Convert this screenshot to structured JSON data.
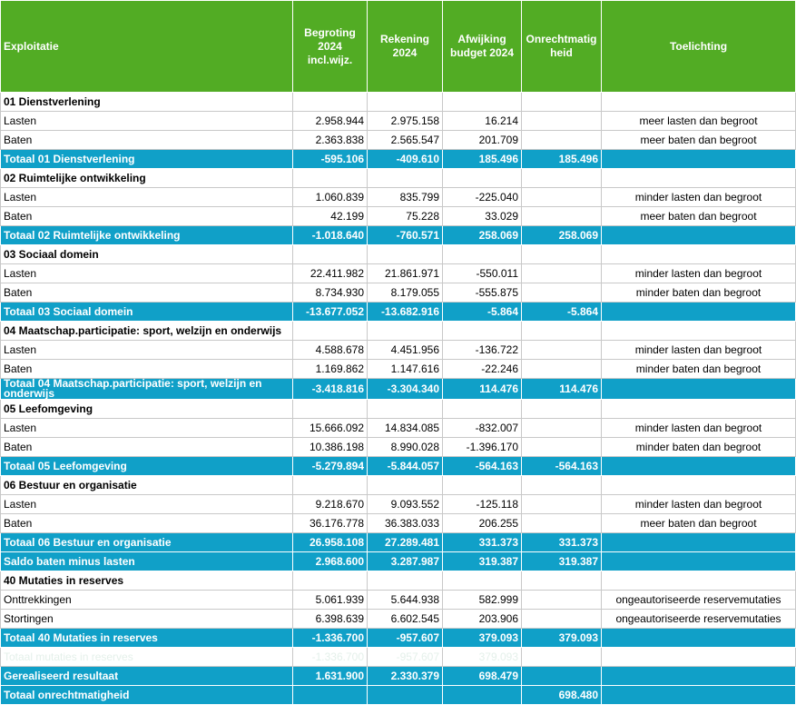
{
  "table": {
    "columns": [
      [
        "Exploitatie"
      ],
      [
        "Begroting",
        "2024",
        "incl.wijz."
      ],
      [
        "Rekening",
        "2024"
      ],
      [
        "Afwijking",
        "budget 2024"
      ],
      [
        "Onrechtmatig",
        "heid"
      ],
      [
        "Toelichting"
      ]
    ],
    "rows": [
      {
        "style": "section",
        "cells": [
          "01 Dienstverlening",
          null,
          null,
          null,
          null,
          null
        ]
      },
      {
        "style": "detail",
        "cells": [
          "Lasten",
          "2.958.944",
          "2.975.158",
          "16.214",
          null,
          "meer lasten dan begroot"
        ]
      },
      {
        "style": "detail",
        "cells": [
          "Baten",
          "2.363.838",
          "2.565.547",
          "201.709",
          null,
          "meer baten dan begroot"
        ]
      },
      {
        "style": "total",
        "cells": [
          "Totaal 01 Dienstverlening",
          "-595.106",
          "-409.610",
          "185.496",
          "185.496",
          null
        ]
      },
      {
        "style": "section",
        "cells": [
          "02 Ruimtelijke ontwikkeling",
          null,
          null,
          null,
          null,
          null
        ]
      },
      {
        "style": "detail",
        "cells": [
          "Lasten",
          "1.060.839",
          "835.799",
          "-225.040",
          null,
          "minder lasten dan begroot"
        ]
      },
      {
        "style": "detail",
        "cells": [
          "Baten",
          "42.199",
          "75.228",
          "33.029",
          null,
          "meer baten dan begroot"
        ]
      },
      {
        "style": "total",
        "cells": [
          "Totaal 02 Ruimtelijke ontwikkeling",
          "-1.018.640",
          "-760.571",
          "258.069",
          "258.069",
          null
        ]
      },
      {
        "style": "section",
        "cells": [
          "03 Sociaal domein",
          null,
          null,
          null,
          null,
          null
        ]
      },
      {
        "style": "detail",
        "cells": [
          "Lasten",
          "22.411.982",
          "21.861.971",
          "-550.011",
          null,
          "minder lasten dan begroot"
        ]
      },
      {
        "style": "detail",
        "cells": [
          "Baten",
          "8.734.930",
          "8.179.055",
          "-555.875",
          null,
          "minder baten dan begroot"
        ]
      },
      {
        "style": "total",
        "cells": [
          "Totaal 03 Sociaal domein",
          "-13.677.052",
          "-13.682.916",
          "-5.864",
          "-5.864",
          null
        ]
      },
      {
        "style": "section",
        "cells": [
          "04 Maatschap.participatie: sport, welzijn en onderwijs",
          null,
          null,
          null,
          null,
          null
        ]
      },
      {
        "style": "detail",
        "cells": [
          "Lasten",
          "4.588.678",
          "4.451.956",
          "-136.722",
          null,
          "minder lasten dan begroot"
        ]
      },
      {
        "style": "detail",
        "cells": [
          "Baten",
          "1.169.862",
          "1.147.616",
          "-22.246",
          null,
          "minder baten dan begroot"
        ]
      },
      {
        "style": "total",
        "cells": [
          "Totaal 04 Maatschap.participatie: sport, welzijn en onderwijs",
          "-3.418.816",
          "-3.304.340",
          "114.476",
          "114.476",
          null
        ]
      },
      {
        "style": "section",
        "cells": [
          "05 Leefomgeving",
          null,
          null,
          null,
          null,
          null
        ]
      },
      {
        "style": "detail",
        "cells": [
          "Lasten",
          "15.666.092",
          "14.834.085",
          "-832.007",
          null,
          "minder lasten dan begroot"
        ]
      },
      {
        "style": "detail",
        "cells": [
          "Baten",
          "10.386.198",
          "8.990.028",
          "-1.396.170",
          null,
          "minder baten dan begroot"
        ]
      },
      {
        "style": "total",
        "cells": [
          "Totaal 05 Leefomgeving",
          "-5.279.894",
          "-5.844.057",
          "-564.163",
          "-564.163",
          null
        ]
      },
      {
        "style": "section",
        "cells": [
          "06 Bestuur en organisatie",
          null,
          null,
          null,
          null,
          null
        ]
      },
      {
        "style": "detail",
        "cells": [
          "Lasten",
          "9.218.670",
          "9.093.552",
          "-125.118",
          null,
          "minder lasten dan begroot"
        ]
      },
      {
        "style": "detail",
        "cells": [
          "Baten",
          "36.176.778",
          "36.383.033",
          "206.255",
          null,
          "meer baten dan begroot"
        ]
      },
      {
        "style": "total",
        "cells": [
          "Totaal 06 Bestuur en organisatie",
          "26.958.108",
          "27.289.481",
          "331.373",
          "331.373",
          null
        ]
      },
      {
        "style": "total",
        "cells": [
          "Saldo baten minus lasten",
          "2.968.600",
          "3.287.987",
          "319.387",
          "319.387",
          null
        ]
      },
      {
        "style": "section",
        "cells": [
          "40 Mutaties in reserves",
          null,
          null,
          null,
          null,
          null
        ]
      },
      {
        "style": "detail",
        "cells": [
          "Onttrekkingen",
          "5.061.939",
          "5.644.938",
          "582.999",
          null,
          "ongeautoriseerde reservemutaties"
        ]
      },
      {
        "style": "detail",
        "cells": [
          "Stortingen",
          "6.398.639",
          "6.602.545",
          "203.906",
          null,
          "ongeautoriseerde reservemutaties"
        ]
      },
      {
        "style": "total",
        "cells": [
          "Totaal 40 Mutaties in reserves",
          "-1.336.700",
          "-957.607",
          "379.093",
          "379.093",
          null
        ]
      },
      {
        "style": "faint",
        "cells": [
          "Totaal mutaties in reserves",
          "-1.336.700",
          "-957.607",
          "379.093",
          null,
          null
        ]
      },
      {
        "style": "total",
        "cells": [
          "Gerealiseerd resultaat",
          "1.631.900",
          "2.330.379",
          "698.479",
          null,
          null
        ]
      },
      {
        "style": "total",
        "cells": [
          "Totaal onrechtmatigheid",
          null,
          null,
          null,
          "698.480",
          null
        ]
      }
    ]
  }
}
